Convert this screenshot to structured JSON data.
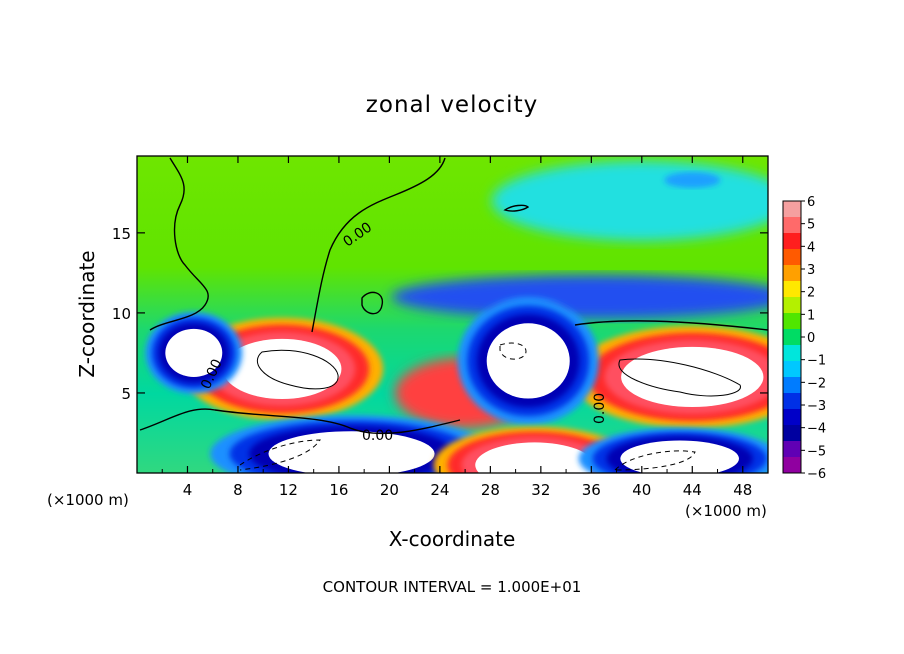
{
  "chart_data": {
    "type": "heatmap",
    "title": "zonal velocity",
    "xlabel": "X-coordinate",
    "ylabel": "Z-coordinate",
    "x_unit": "(×1000 m)",
    "x_unit_right": "(×1000 m)",
    "xlim": [
      0,
      50
    ],
    "ylim": [
      0,
      19.8
    ],
    "x_ticks": [
      4,
      8,
      12,
      16,
      20,
      24,
      28,
      32,
      36,
      40,
      44,
      48
    ],
    "y_ticks": [
      5,
      10,
      15
    ],
    "colorbar": {
      "range": [
        -6,
        6
      ],
      "ticks": [
        6,
        5,
        4,
        3,
        2,
        1,
        0,
        -1,
        -2,
        -3,
        -4,
        -5,
        -6
      ],
      "colors": [
        "#f5a0a0",
        "#ff6a6a",
        "#ff1e1e",
        "#ff5a00",
        "#ffa000",
        "#ffe800",
        "#b4f000",
        "#50e600",
        "#00dc64",
        "#00e6dc",
        "#00c8ff",
        "#007cff",
        "#0030e6",
        "#0000c8",
        "#0000a0",
        "#6000b4",
        "#9000a0"
      ]
    },
    "contour_label": "0.00",
    "contour_interval": "CONTOUR INTERVAL = 1.000E+01",
    "features": [
      {
        "kind": "max",
        "x": 11.5,
        "z": 6.5,
        "rx": 5,
        "rz": 2
      },
      {
        "kind": "max",
        "x": 44,
        "z": 6,
        "rx": 6,
        "rz": 2
      },
      {
        "kind": "min",
        "x": 31,
        "z": 7,
        "rx": 3.5,
        "rz": 2.5
      },
      {
        "kind": "min",
        "x": 17,
        "z": 1.2,
        "rx": 7,
        "rz": 1.5
      },
      {
        "kind": "max",
        "x": 31.5,
        "z": 0.5,
        "rx": 5,
        "rz": 1.5
      },
      {
        "kind": "min",
        "x": 43,
        "z": 0.9,
        "rx": 5,
        "rz": 1.2
      },
      {
        "kind": "min",
        "x": 4.5,
        "z": 7.5,
        "rx": 2.4,
        "rz": 1.6
      }
    ]
  }
}
